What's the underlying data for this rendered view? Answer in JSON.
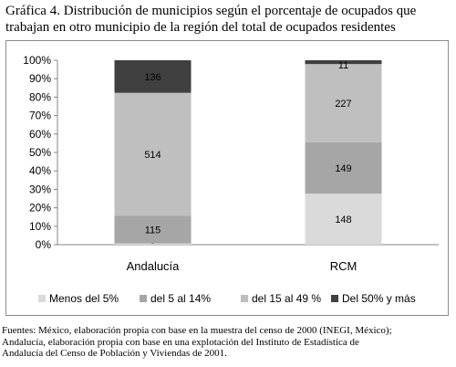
{
  "title": {
    "line1": "Gráfica 4. Distribución de municipios según el porcentaje de ocupados que",
    "line2": "trabajan en otro municipio de la región del total de ocupados residentes"
  },
  "source": {
    "line1": "Fuentes: México, elaboración propia con base en la muestra del censo de 2000 (INEGI, México);",
    "line2": "Andalucía, elaboración propia con base en una explotación del Instituto de Estadística de",
    "line3": "Andalucía del Censo de Población y Viviendas de 2001."
  },
  "chart_data": {
    "type": "bar",
    "stacked": "100%",
    "categories": [
      "Andalucía",
      "RCM"
    ],
    "series": [
      {
        "name": "Menos del 5%",
        "color": "#dadada",
        "values": [
          5,
          148
        ]
      },
      {
        "name": "del 5 al 14%",
        "color": "#a6a6a6",
        "values": [
          115,
          149
        ]
      },
      {
        "name": "del 15 al 49 %",
        "color": "#bfbfbf",
        "values": [
          514,
          227
        ]
      },
      {
        "name": "Del 50% y más",
        "color": "#404040",
        "values": [
          136,
          11
        ]
      }
    ],
    "y_ticks": [
      "0%",
      "10%",
      "20%",
      "30%",
      "40%",
      "50%",
      "60%",
      "70%",
      "80%",
      "90%",
      "100%"
    ],
    "ylim": [
      0,
      100
    ],
    "legend_position": "bottom",
    "grid": false
  }
}
